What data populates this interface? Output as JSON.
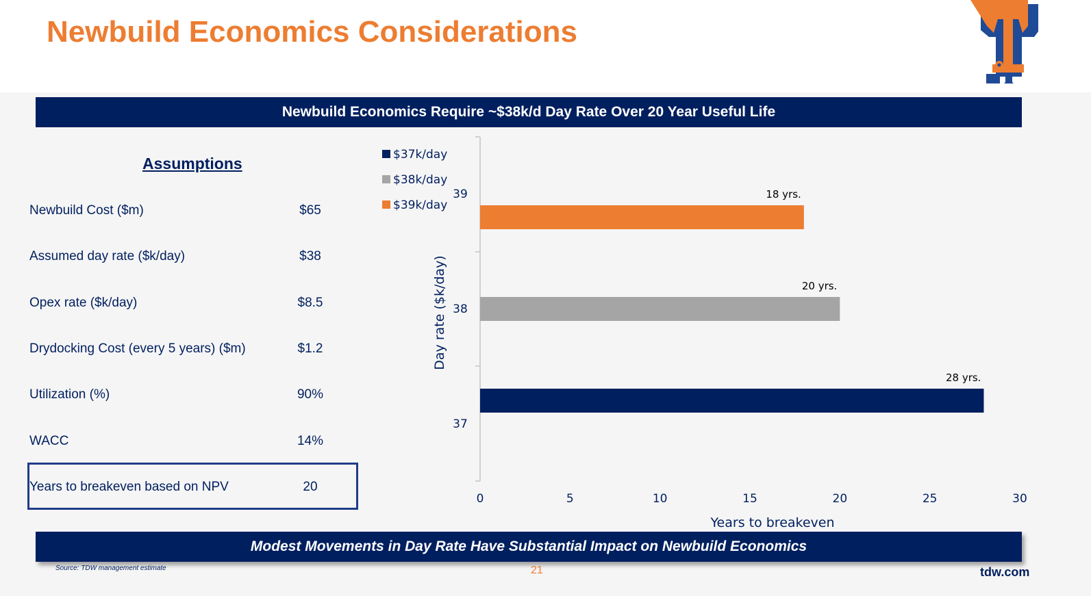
{
  "title": "Newbuild Economics Considerations",
  "banner_top": "Newbuild Economics Require ~$38k/d Day Rate Over 20 Year Useful Life",
  "banner_bottom": "Modest Movements in Day Rate Have Substantial Impact on Newbuild Economics",
  "assumptions": {
    "title": "Assumptions",
    "rows": [
      {
        "label": "Newbuild Cost ($m)",
        "value": "$65"
      },
      {
        "label": "Assumed day rate ($k/day)",
        "value": "$38"
      },
      {
        "label": "Opex rate ($k/day)",
        "value": "$8.5"
      },
      {
        "label": "Drydocking Cost (every 5 years) ($m)",
        "value": "$1.2"
      },
      {
        "label": "Utilization (%)",
        "value": "90%"
      },
      {
        "label": "WACC",
        "value": "14%"
      },
      {
        "label": "Years to breakeven based on NPV",
        "value": "20"
      }
    ]
  },
  "footer": {
    "source": "Source: TDW management estimate",
    "page": "21",
    "site": "tdw.com"
  },
  "chart_data": {
    "type": "bar",
    "orientation": "horizontal",
    "categories": [
      "37",
      "38",
      "39"
    ],
    "values": [
      28,
      20,
      18
    ],
    "data_labels": [
      "28 yrs.",
      "20 yrs.",
      "18 yrs."
    ],
    "colors": [
      "#001f5f",
      "#a5a5a5",
      "#ed7d31"
    ],
    "legend": [
      "$37k/day",
      "$38k/day",
      "$39k/day"
    ],
    "legend_position": "top-left",
    "xlabel": "Years to breakeven",
    "ylabel": "Day rate ($k/day)",
    "xlim": [
      0,
      30
    ],
    "xticks": [
      "0",
      "5",
      "10",
      "15",
      "20",
      "25",
      "30"
    ]
  }
}
